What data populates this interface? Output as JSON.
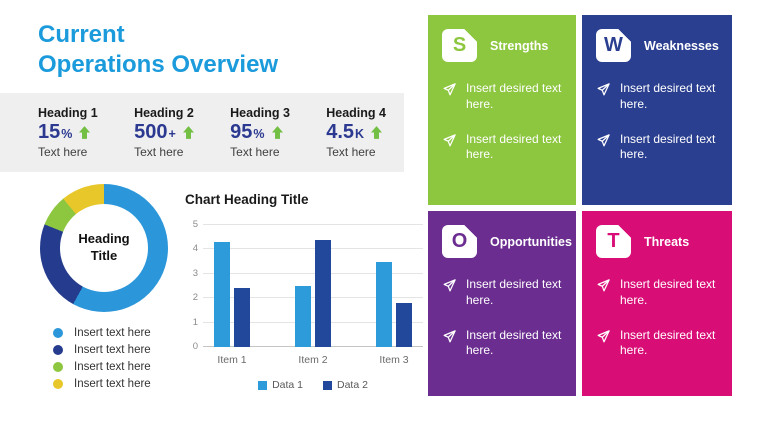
{
  "slide": {
    "title": {
      "line1": "Current",
      "line2": "Operations Overview"
    },
    "title_color": "#1B9BDB"
  },
  "stats": {
    "band_color": "#EFEFEF",
    "value_color": "#2B3991",
    "arrow_color": "#72BF44",
    "items": [
      {
        "heading": "Heading 1",
        "value": "15",
        "suffix": "%",
        "caption": "Text here"
      },
      {
        "heading": "Heading 2",
        "value": "500",
        "suffix": "+",
        "caption": "Text here"
      },
      {
        "heading": "Heading 3",
        "value": "95",
        "suffix": "%",
        "caption": "Text here"
      },
      {
        "heading": "Heading 4",
        "value": "4.5",
        "suffix": "K",
        "caption": "Text here"
      }
    ]
  },
  "chart_data": [
    {
      "type": "pie",
      "subtype": "donut",
      "center_label": "Heading Title",
      "values": [
        58,
        23,
        8,
        11
      ],
      "colors": [
        "#2B97DA",
        "#253C8E",
        "#8DC63F",
        "#E8C72B"
      ],
      "labels": [
        "Insert text here",
        "Insert text here",
        "Insert text here",
        "Insert text here"
      ],
      "legend_position": "bottom-left"
    },
    {
      "type": "bar",
      "title": "Chart Heading Title",
      "categories": [
        "Item 1",
        "Item 2",
        "Item 3"
      ],
      "series": [
        {
          "name": "Data 1",
          "color": "#2D9AD9",
          "values": [
            4.3,
            2.5,
            3.5
          ]
        },
        {
          "name": "Data 2",
          "color": "#21489B",
          "values": [
            2.4,
            4.4,
            1.8
          ]
        }
      ],
      "ylim": [
        0,
        5
      ],
      "yticks": [
        0,
        1,
        2,
        3,
        4,
        5
      ],
      "grid": true,
      "legend_position": "bottom"
    }
  ],
  "swot": {
    "bullet_icon": "paper-plane-icon",
    "quadrants": [
      {
        "letter": "S",
        "title": "Strengths",
        "color": "#8DC63F",
        "bullets": [
          "Insert desired text here.",
          "Insert desired text here."
        ]
      },
      {
        "letter": "W",
        "title": "Weaknesses",
        "color": "#2B3F90",
        "bullets": [
          "Insert desired text here.",
          "Insert desired text here."
        ]
      },
      {
        "letter": "O",
        "title": "Opportunities",
        "color": "#6B2D90",
        "bullets": [
          "Insert desired text here.",
          "Insert desired text here."
        ]
      },
      {
        "letter": "T",
        "title": "Threats",
        "color": "#D90D76",
        "bullets": [
          "Insert desired text here.",
          "Insert desired text here."
        ]
      }
    ]
  }
}
